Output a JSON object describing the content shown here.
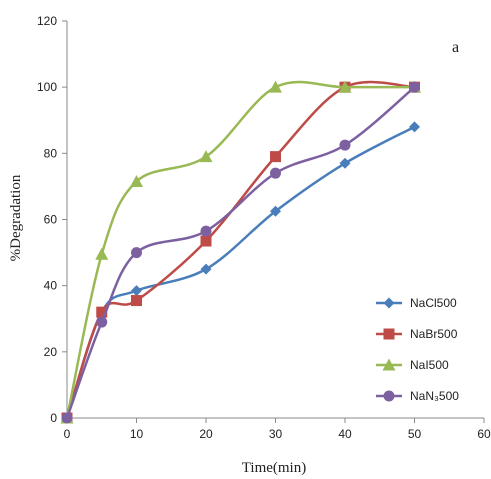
{
  "chart_data": {
    "type": "line",
    "panel_label": "a",
    "xlabel": "Time(min)",
    "ylabel": "%Degradation",
    "xlim": [
      0,
      60
    ],
    "ylim": [
      0,
      120
    ],
    "xticks": [
      0,
      10,
      20,
      30,
      40,
      50,
      60
    ],
    "yticks": [
      0,
      20,
      40,
      60,
      80,
      100,
      120
    ],
    "grid": false,
    "legend_position": "right",
    "series": [
      {
        "name": "NaCl500",
        "color": "#4a7ebb",
        "marker": "diamond",
        "x": [
          0,
          5,
          10,
          20,
          30,
          40,
          50
        ],
        "y": [
          0,
          32,
          38.5,
          45,
          62.5,
          77,
          88
        ]
      },
      {
        "name": "NaBr500",
        "color": "#be4b48",
        "marker": "square",
        "x": [
          0,
          5,
          10,
          20,
          30,
          40,
          50
        ],
        "y": [
          0,
          32,
          35.5,
          53.5,
          79,
          100,
          100
        ]
      },
      {
        "name": "NaI500",
        "color": "#98b954",
        "marker": "triangle",
        "x": [
          0,
          5,
          10,
          20,
          30,
          40,
          50
        ],
        "y": [
          0,
          49.5,
          71.5,
          79,
          100,
          100,
          100
        ]
      },
      {
        "name": "NaN₃500",
        "color": "#7d60a0",
        "marker": "circle",
        "x": [
          0,
          5,
          10,
          20,
          30,
          40,
          50
        ],
        "y": [
          0,
          29,
          50,
          56.5,
          74,
          82.5,
          100
        ]
      }
    ]
  }
}
